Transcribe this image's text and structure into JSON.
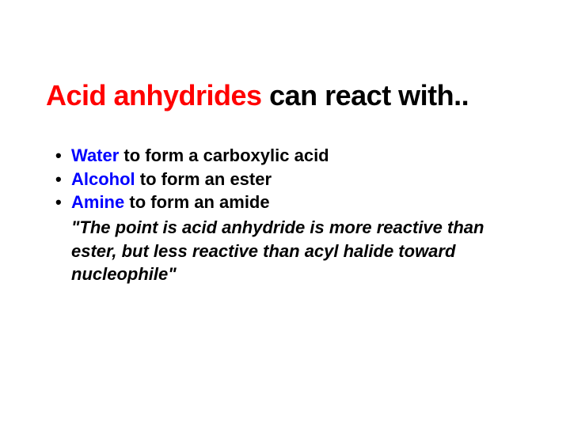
{
  "title": {
    "highlight": "Acid anhydrides",
    "rest": " can react with..",
    "highlight_color": "#ff0000",
    "rest_color": "#000000",
    "fontsize": 36
  },
  "bullets": [
    {
      "keyword": "Water",
      "rest": " to form a carboxylic acid"
    },
    {
      "keyword": "Alcohol",
      "rest": " to form an ester"
    },
    {
      "keyword": "Amine",
      "rest": " to form an amide"
    }
  ],
  "bullet_keyword_color": "#0000ff",
  "bullet_text_color": "#000000",
  "bullet_fontsize": 22,
  "quote": "\"The point is acid anhydride is more reactive than ester, but less reactive than acyl halide toward nucleophile\"",
  "quote_fontsize": 22,
  "background_color": "#ffffff",
  "font_family": "Segoe UI"
}
